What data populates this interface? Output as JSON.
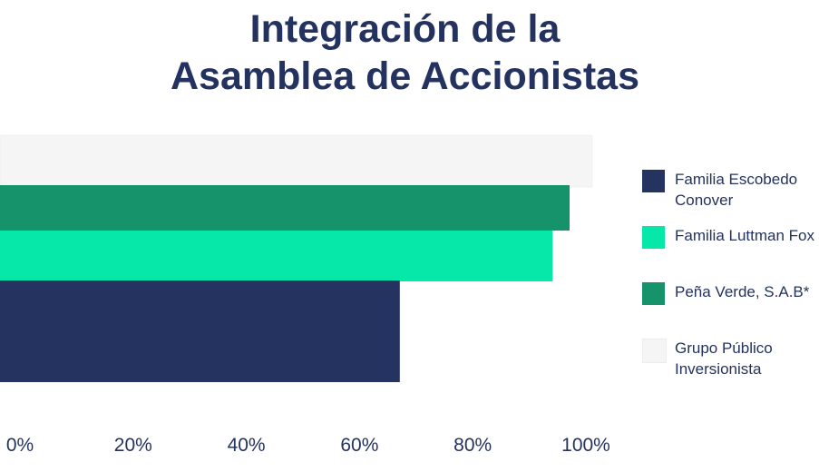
{
  "chart_data": {
    "type": "bar",
    "orientation": "horizontal",
    "title_lines": [
      "Integración de la",
      "Asamblea de Accionistas"
    ],
    "categories": [
      ""
    ],
    "series": [
      {
        "name": "Grupo Público Inversionista",
        "values": [
          104
        ],
        "color": "#f5f5f5"
      },
      {
        "name": "Peña Verde, S.A.B*",
        "values": [
          100
        ],
        "color": "#17936c"
      },
      {
        "name": "Familia Luttman Fox",
        "values": [
          97
        ],
        "color": "#06e8aa"
      },
      {
        "name": "Familia Escobedo Conover",
        "values": [
          70
        ],
        "color": "#24335f"
      }
    ],
    "xlim": [
      0,
      100
    ],
    "x_ticks": [
      "0%",
      "20%",
      "40%",
      "60%",
      "80%",
      "100%"
    ],
    "grid": false,
    "legend_position": "right",
    "legend": [
      {
        "label": "Familia Escobedo Conover",
        "color": "#24335f"
      },
      {
        "label": "Familia Luttman Fox",
        "color": "#06e8aa"
      },
      {
        "label": "Peña Verde, S.A.B*",
        "color": "#17936c"
      },
      {
        "label": "Grupo Público Inversionista",
        "color": "#f5f5f5"
      }
    ]
  }
}
